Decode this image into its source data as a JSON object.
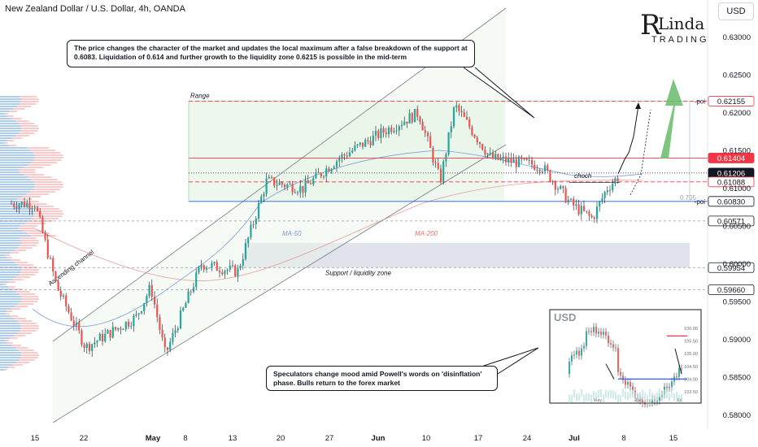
{
  "header": {
    "symbol_title": "New Zealand Dollar / U.S. Dollar, 4h, OANDA",
    "currency_button": "USD"
  },
  "logo": {
    "line1_big": "R",
    "line1_rest": "Linda",
    "line2": "TRADING"
  },
  "annotations": {
    "note_top": "The price changes the character of the market and updates the local maximum after a false breakdown of the support at 0.6083. Liquidation of 0.614 and further growth to the liquidity zone 0.6215 is possible in the mid-term",
    "note_bottom": "Speculators change mood amid Powell's words on 'disinflation' phase. Bulls return to the forex market",
    "range_label": "Range",
    "ascending_channel_label": "Ascending channel",
    "ma50_label": "MA-50",
    "ma200_label": "MA-200",
    "support_label": "Support / liquidity zone",
    "choch_label": "choch",
    "poi_upper": "-poi",
    "poi_lower": "-poi",
    "fib_label": "0.705",
    "inset_title": "USD"
  },
  "colors": {
    "bull": "#26a69a",
    "bear": "#ef5350",
    "channel": "#787b86",
    "range_fill": "#e8f5e9",
    "zone_fill": "#e0e3eb",
    "highlight_red": "#f23645",
    "blue_level": "#2962ff",
    "ma50": "#7a9bd6",
    "ma200": "#e57373",
    "arrow_green": "#66bb6a"
  },
  "chart_data": {
    "type": "candlestick",
    "title": "New Zealand Dollar / U.S. Dollar, 4h, OANDA",
    "y_axis": {
      "ticks": [
        "0.58000",
        "0.58500",
        "0.59000",
        "0.59500",
        "0.60000",
        "0.60500",
        "0.61000",
        "0.61500",
        "0.62000",
        "0.62500",
        "0.63000"
      ],
      "ylim": [
        0.5795,
        0.6335
      ]
    },
    "x_axis": {
      "ticks": [
        "15",
        "22",
        "May",
        "8",
        "13",
        "20",
        "27",
        "Jun",
        "10",
        "17",
        "24",
        "Jul",
        "8",
        "15"
      ]
    },
    "price_path": [
      [
        "Apr 15",
        0.608
      ],
      [
        "Apr 18",
        0.597
      ],
      [
        "Apr 22",
        0.589
      ],
      [
        "Apr 29",
        0.593
      ],
      [
        "May 1",
        0.597
      ],
      [
        "May 3",
        0.588
      ],
      [
        "May 8",
        0.6
      ],
      [
        "May 13",
        0.599
      ],
      [
        "May 15",
        0.605
      ],
      [
        "May 17",
        0.611
      ],
      [
        "May 22",
        0.61
      ],
      [
        "May 27",
        0.614
      ],
      [
        "Jun 3",
        0.618
      ],
      [
        "Jun 7",
        0.62
      ],
      [
        "Jun 10",
        0.611
      ],
      [
        "Jun 12",
        0.621
      ],
      [
        "Jun 17",
        0.614
      ],
      [
        "Jun 24",
        0.613
      ],
      [
        "Jun 28",
        0.608
      ],
      [
        "Jul 1",
        0.606
      ],
      [
        "Jul 3",
        0.61
      ],
      [
        "Jul 5",
        0.612
      ]
    ],
    "levels": [
      {
        "label": "0.62155",
        "value": 0.62155,
        "style": "red-dashed"
      },
      {
        "label": "0.61404",
        "value": 0.61404,
        "style": "red"
      },
      {
        "label": "0.61206",
        "value": 0.61206,
        "style": "current"
      },
      {
        "label": "0.61088",
        "value": 0.61088,
        "style": "red-dashed"
      },
      {
        "label": "0.60830",
        "value": 0.6083,
        "style": "blue"
      },
      {
        "label": "0.60571",
        "value": 0.60571,
        "style": "gray-dashed"
      },
      {
        "label": "0.59954",
        "value": 0.59954,
        "style": "gray-dashed"
      },
      {
        "label": "0.59660",
        "value": 0.5966,
        "style": "gray-dashed"
      }
    ],
    "inset": {
      "title": "USD",
      "y_ticks": [
        "106.00",
        "105.50",
        "105.00",
        "104.50",
        "104.00",
        "103.50"
      ],
      "x_ticks": [
        "May",
        "Jun",
        "Jul"
      ]
    }
  }
}
